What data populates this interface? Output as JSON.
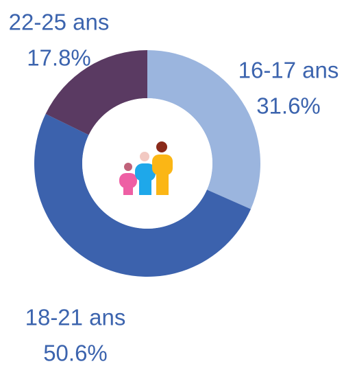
{
  "chart_data": {
    "type": "donut",
    "categories": [
      "16-17 ans",
      "18-21 ans",
      "22-25 ans"
    ],
    "values": [
      31.6,
      50.6,
      17.8
    ],
    "value_labels": [
      "31.6%",
      "50.6%",
      "17.8%"
    ],
    "colors": [
      "#9bb5de",
      "#3c62ad",
      "#5a3a62"
    ]
  }
}
